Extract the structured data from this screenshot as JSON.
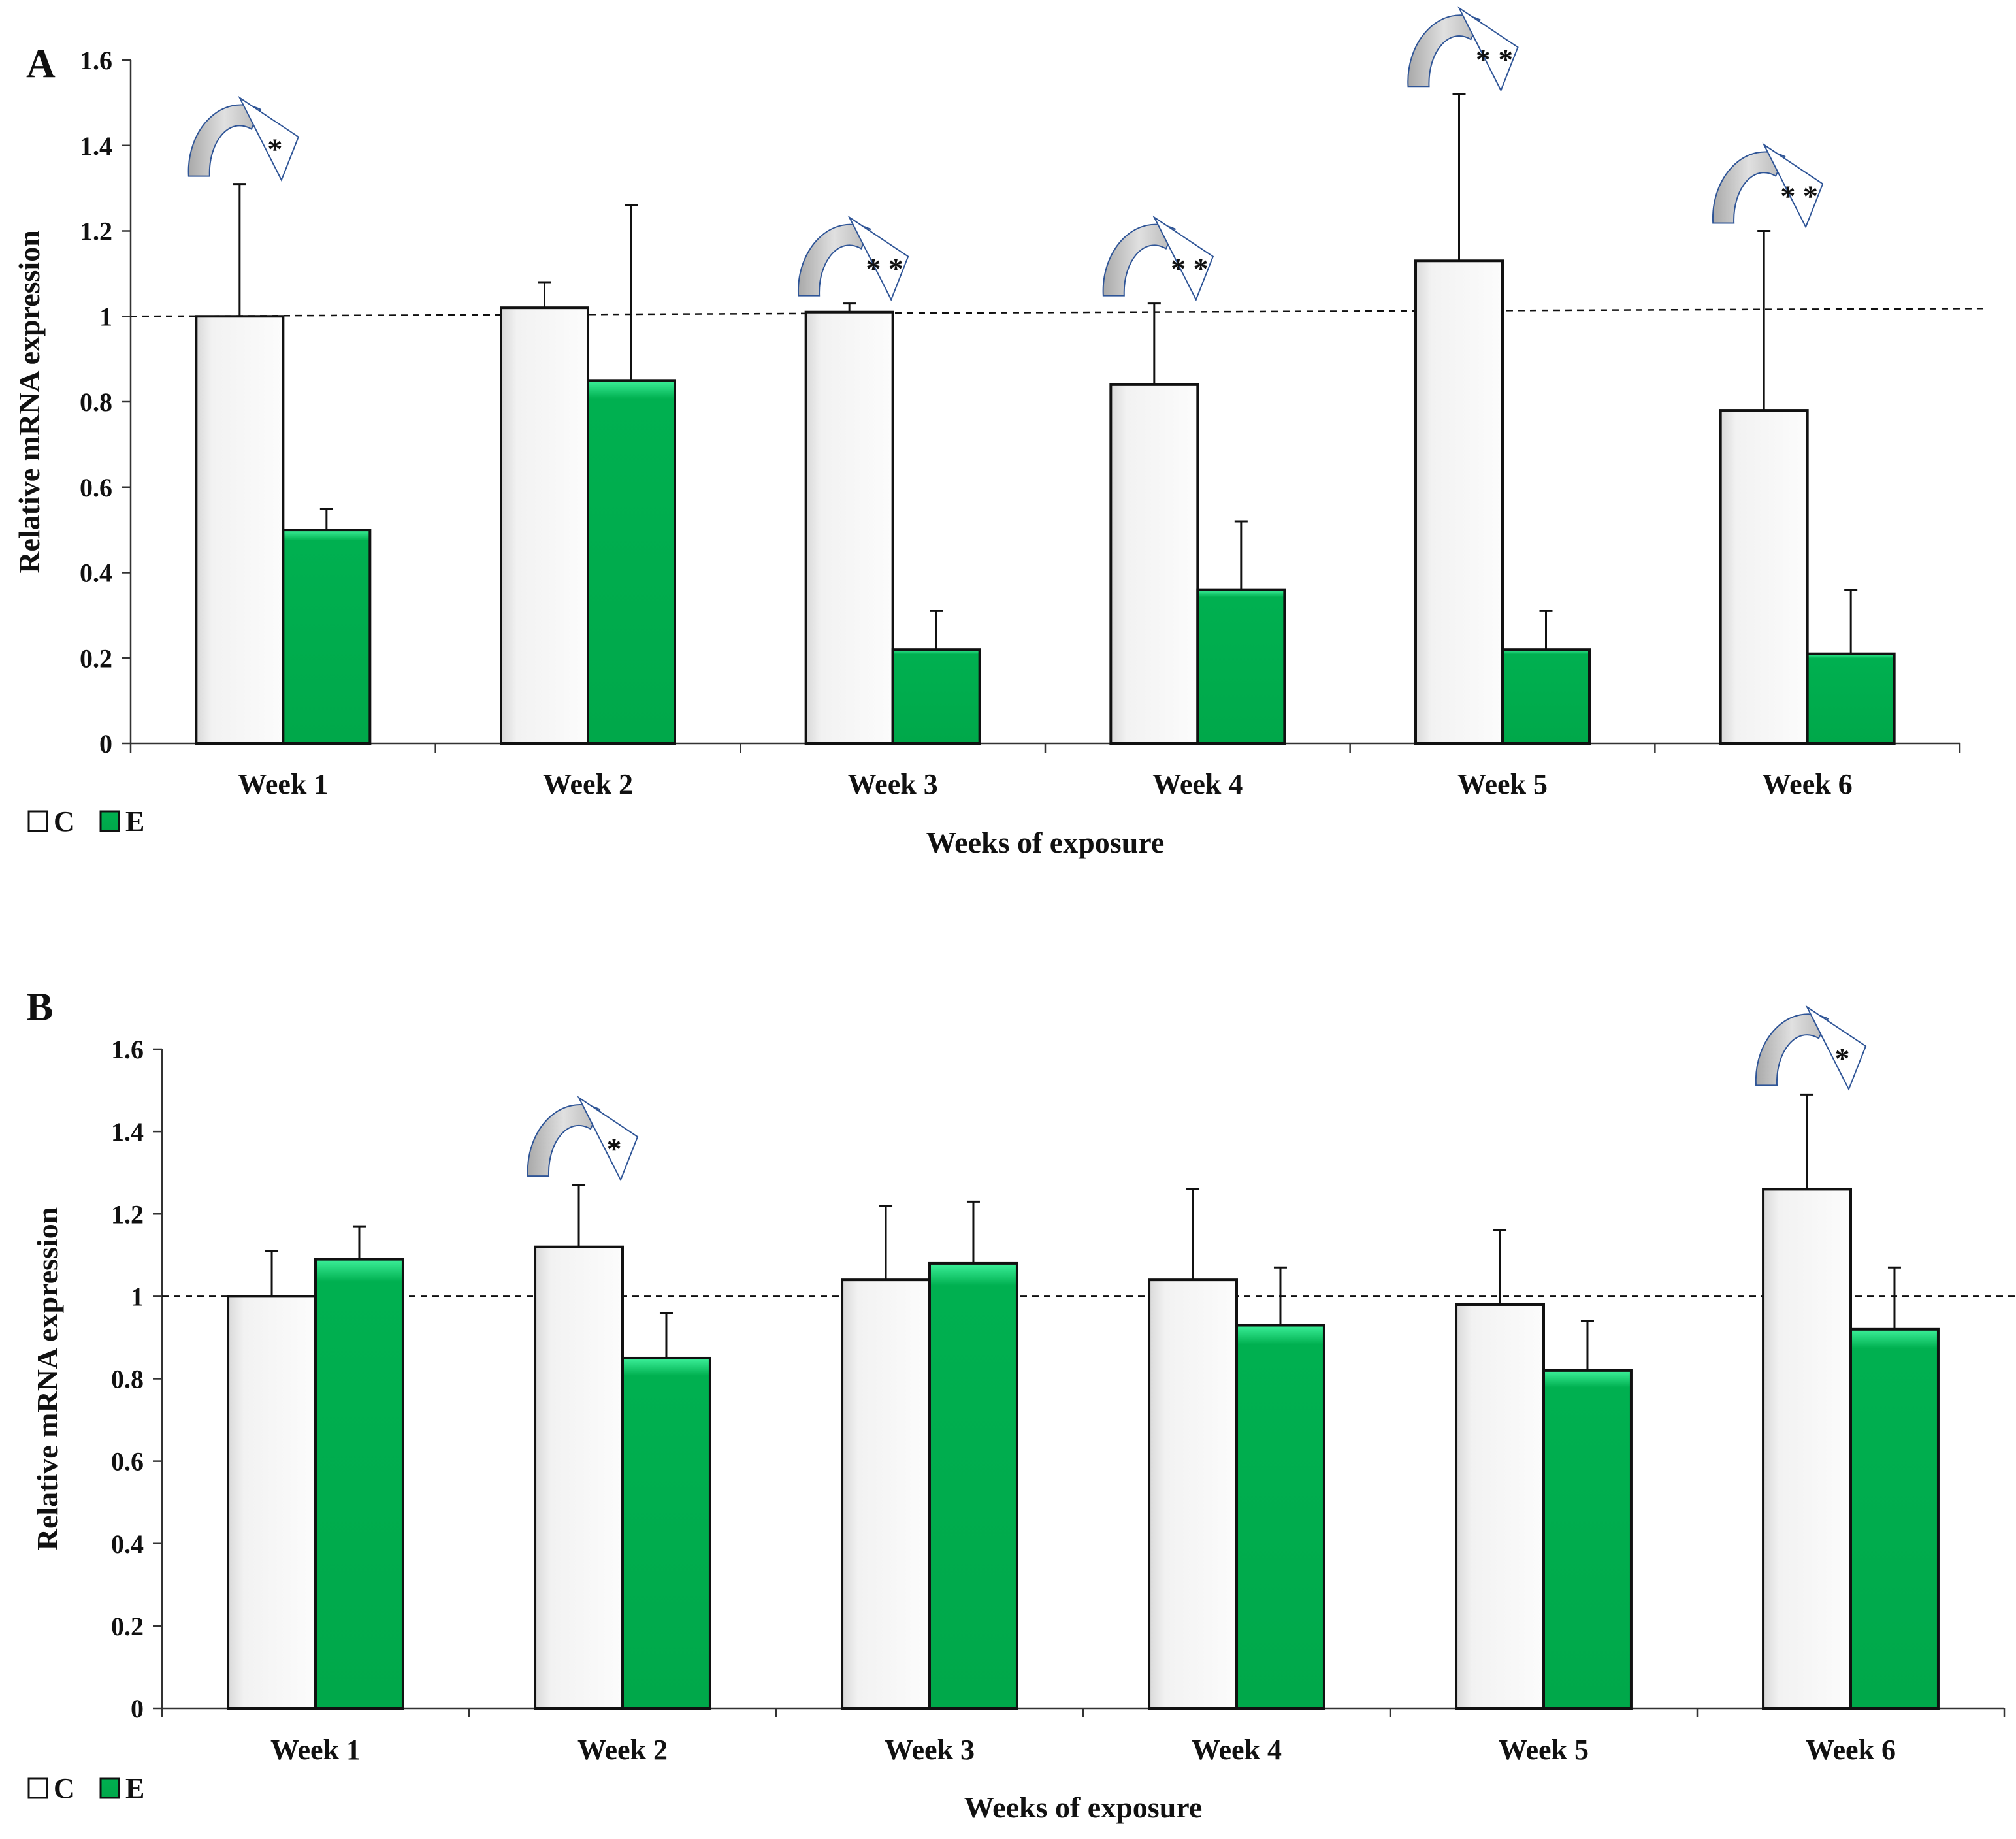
{
  "legend": [
    {
      "key": "C",
      "label": "C",
      "color": "#f4f4f4"
    },
    {
      "key": "E",
      "label": "E",
      "color": "#00b050"
    }
  ],
  "colors": {
    "control_fill": "#f4f4f4",
    "treatment_fill": "#00b050",
    "treatment_highlight": "#2ee08a",
    "arrow_fill": "#c8c8c8",
    "axis": "#333333"
  },
  "chart_data": [
    {
      "panel": "A",
      "type": "bar",
      "title": "",
      "xlabel": "Weeks of exposure",
      "ylabel": "Relative mRNA expression",
      "ylim": [
        0,
        1.6
      ],
      "yticks": [
        "0",
        "0.2",
        "0.4",
        "0.6",
        "0.8",
        "1",
        "1.2",
        "1.4",
        "1.6"
      ],
      "reference_line": 1,
      "categories": [
        "Week 1",
        "Week 2",
        "Week 3",
        "Week 4",
        "Week 5",
        "Week 6"
      ],
      "series": [
        {
          "name": "C",
          "values": [
            1.0,
            1.02,
            1.01,
            0.84,
            1.13,
            0.78
          ],
          "errors": [
            0.31,
            0.06,
            0.02,
            0.19,
            0.39,
            0.42
          ]
        },
        {
          "name": "E",
          "values": [
            0.5,
            0.85,
            0.22,
            0.36,
            0.22,
            0.21
          ],
          "errors": [
            0.05,
            0.41,
            0.09,
            0.16,
            0.09,
            0.15
          ]
        }
      ],
      "significance": [
        "*",
        "",
        "* *",
        "* *",
        "* *",
        "* *"
      ]
    },
    {
      "panel": "B",
      "type": "bar",
      "title": "",
      "xlabel": "Weeks of exposure",
      "ylabel": "Relative mRNA expression",
      "ylim": [
        0,
        1.6
      ],
      "yticks": [
        "0",
        "0.2",
        "0.4",
        "0.6",
        "0.8",
        "1",
        "1.2",
        "1.4",
        "1.6"
      ],
      "reference_line": 1,
      "categories": [
        "Week 1",
        "Week 2",
        "Week 3",
        "Week 4",
        "Week 5",
        "Week 6"
      ],
      "series": [
        {
          "name": "C",
          "values": [
            1.0,
            1.12,
            1.04,
            1.04,
            0.98,
            1.26
          ],
          "errors": [
            0.11,
            0.15,
            0.18,
            0.22,
            0.18,
            0.23
          ]
        },
        {
          "name": "E",
          "values": [
            1.09,
            0.85,
            1.08,
            0.93,
            0.82,
            0.92
          ],
          "errors": [
            0.08,
            0.11,
            0.15,
            0.14,
            0.12,
            0.15
          ]
        }
      ],
      "significance": [
        "",
        "*",
        "",
        "",
        "",
        "*"
      ]
    }
  ]
}
